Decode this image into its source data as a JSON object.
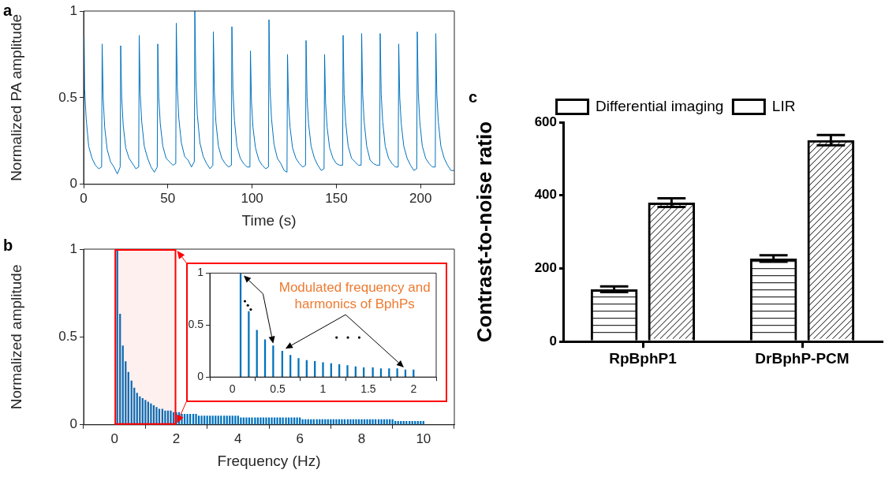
{
  "chart_data": [
    {
      "type": "line",
      "title": "a",
      "xlabel": "Time (s)",
      "ylabel": "Normalized PA amplitude",
      "color": "#0072bd",
      "grid": false,
      "x": [
        0.3,
        0.6,
        1.5,
        3,
        5,
        7,
        9,
        10.7,
        11,
        11.6,
        12.5,
        14,
        16,
        18,
        20,
        21.7,
        22,
        22.6,
        23.5,
        25,
        27,
        29,
        31,
        32.7,
        33,
        33.6,
        34.5,
        36,
        38,
        40,
        42,
        43.7,
        44,
        44.6,
        45.5,
        47,
        49,
        51,
        53,
        54.7,
        55,
        55.6,
        56.5,
        58,
        60,
        62,
        64,
        65.7,
        66,
        66.6,
        67.5,
        69,
        71,
        73,
        75,
        76.7,
        77,
        77.6,
        78.5,
        80,
        82,
        84,
        86,
        87.7,
        88,
        88.6,
        89.5,
        91,
        93,
        95,
        97,
        98.7,
        99,
        99.6,
        100.5,
        102,
        104,
        106,
        108,
        109.7,
        110,
        110.6,
        111.5,
        113,
        115,
        117,
        119,
        120.7,
        121,
        121.6,
        122.5,
        124,
        126,
        128,
        130,
        131.7,
        132,
        132.6,
        133.5,
        135,
        137,
        139,
        141,
        142.7,
        143,
        143.6,
        144.5,
        146,
        148,
        150,
        152,
        153.7,
        154,
        154.6,
        155.5,
        157,
        159,
        161,
        163,
        164.7,
        165,
        165.6,
        166.5,
        168,
        170,
        172,
        174,
        175.7,
        176,
        176.6,
        177.5,
        179,
        181,
        183,
        185,
        186.7,
        187,
        187.6,
        188.5,
        190,
        192,
        194,
        196,
        197.7,
        198,
        198.6,
        199.5,
        201,
        203,
        205,
        207,
        208.7,
        209,
        209.6,
        210.5,
        212,
        214,
        216,
        218,
        220
      ],
      "values": [
        0.85,
        0.55,
        0.38,
        0.22,
        0.15,
        0.11,
        0.09,
        0.1,
        0.81,
        0.5,
        0.33,
        0.2,
        0.13,
        0.1,
        0.06,
        0.1,
        0.8,
        0.5,
        0.34,
        0.21,
        0.15,
        0.12,
        0.09,
        0.1,
        0.86,
        0.52,
        0.36,
        0.22,
        0.15,
        0.1,
        0.07,
        0.1,
        0.81,
        0.5,
        0.35,
        0.22,
        0.15,
        0.13,
        0.11,
        0.12,
        0.93,
        0.56,
        0.38,
        0.24,
        0.16,
        0.14,
        0.1,
        0.13,
        1,
        0.6,
        0.4,
        0.24,
        0.16,
        0.12,
        0.09,
        0.11,
        0.88,
        0.53,
        0.36,
        0.22,
        0.15,
        0.12,
        0.1,
        0.11,
        0.91,
        0.55,
        0.37,
        0.22,
        0.15,
        0.12,
        0.1,
        0.1,
        0.77,
        0.48,
        0.33,
        0.21,
        0.14,
        0.11,
        0.09,
        0.1,
        0.95,
        0.56,
        0.38,
        0.23,
        0.15,
        0.12,
        0.08,
        0.07,
        0.75,
        0.47,
        0.33,
        0.21,
        0.15,
        0.12,
        0.1,
        0.11,
        0.83,
        0.5,
        0.35,
        0.22,
        0.15,
        0.11,
        0.08,
        0.09,
        0.75,
        0.47,
        0.33,
        0.21,
        0.15,
        0.12,
        0.11,
        0.11,
        0.86,
        0.52,
        0.36,
        0.22,
        0.15,
        0.13,
        0.11,
        0.11,
        0.87,
        0.52,
        0.36,
        0.22,
        0.14,
        0.12,
        0.11,
        0.11,
        0.87,
        0.52,
        0.36,
        0.22,
        0.15,
        0.12,
        0.1,
        0.1,
        0.81,
        0.5,
        0.35,
        0.22,
        0.15,
        0.11,
        0.08,
        0.09,
        0.88,
        0.53,
        0.36,
        0.22,
        0.15,
        0.12,
        0.1,
        0.1,
        0.87,
        0.52,
        0.36,
        0.22,
        0.15,
        0.11,
        0.08,
        0.08
      ],
      "xlim": [
        0,
        220
      ],
      "xticks": [
        0,
        50,
        100,
        150,
        200
      ],
      "ylim": [
        0,
        1
      ],
      "yticks": [
        0,
        0.5,
        1
      ]
    },
    {
      "type": "bar",
      "title": "b",
      "xlabel": "Frequency (Hz)",
      "ylabel": "Normalized amplitude",
      "color": "#0072bd",
      "grid": false,
      "x": [
        0.09,
        0.18,
        0.27,
        0.36,
        0.45,
        0.55,
        0.64,
        0.73,
        0.82,
        0.91,
        1.0,
        1.09,
        1.18,
        1.27,
        1.36,
        1.45,
        1.55,
        1.64,
        1.73,
        1.82,
        1.91,
        2.0,
        2.09,
        2.18,
        2.27,
        2.36,
        2.45,
        2.55,
        2.64,
        2.73,
        2.82,
        2.91,
        3.0,
        3.09,
        3.18,
        3.27,
        3.36,
        3.45,
        3.55,
        3.64,
        3.73,
        3.82,
        3.91,
        4.0,
        4.09,
        4.18,
        4.27,
        4.36,
        4.45,
        4.55,
        4.64,
        4.73,
        4.82,
        4.91,
        5.0,
        5.09,
        5.18,
        5.27,
        5.36,
        5.45,
        5.55,
        5.64,
        5.73,
        5.82,
        5.91,
        6.0,
        6.09,
        6.18,
        6.27,
        6.36,
        6.45,
        6.55,
        6.64,
        6.73,
        6.82,
        6.91,
        7.0,
        7.09,
        7.18,
        7.27,
        7.36,
        7.45,
        7.55,
        7.64,
        7.73,
        7.82,
        7.91,
        8.0,
        8.09,
        8.18,
        8.27,
        8.36,
        8.45,
        8.55,
        8.64,
        8.73,
        8.82,
        8.91,
        9.0,
        9.09,
        9.18,
        9.27,
        9.36,
        9.45,
        9.55,
        9.64,
        9.73,
        9.82,
        9.91,
        10.0
      ],
      "values": [
        1,
        0.63,
        0.45,
        0.36,
        0.3,
        0.25,
        0.21,
        0.18,
        0.16,
        0.15,
        0.14,
        0.13,
        0.12,
        0.11,
        0.1,
        0.09,
        0.09,
        0.08,
        0.08,
        0.08,
        0.07,
        0.07,
        0.07,
        0.06,
        0.06,
        0.06,
        0.06,
        0.06,
        0.06,
        0.05,
        0.05,
        0.05,
        0.05,
        0.05,
        0.05,
        0.05,
        0.05,
        0.05,
        0.05,
        0.05,
        0.05,
        0.05,
        0.05,
        0.05,
        0.04,
        0.04,
        0.04,
        0.04,
        0.04,
        0.04,
        0.04,
        0.04,
        0.04,
        0.04,
        0.04,
        0.04,
        0.04,
        0.04,
        0.04,
        0.04,
        0.04,
        0.04,
        0.04,
        0.04,
        0.04,
        0.04,
        0.03,
        0.03,
        0.03,
        0.03,
        0.03,
        0.03,
        0.03,
        0.03,
        0.03,
        0.03,
        0.03,
        0.03,
        0.03,
        0.03,
        0.03,
        0.03,
        0.03,
        0.03,
        0.03,
        0.03,
        0.03,
        0.03,
        0.03,
        0.03,
        0.03,
        0.03,
        0.03,
        0.03,
        0.03,
        0.03,
        0.03,
        0.03,
        0.03,
        0.02,
        0.02,
        0.02,
        0.02,
        0.02,
        0.02,
        0.02,
        0.02,
        0.02,
        0.02,
        0.02
      ],
      "xlim": [
        0,
        10
      ],
      "xticks": [
        0,
        2,
        4,
        6,
        8,
        10
      ],
      "ylim": [
        0,
        1
      ],
      "yticks": [
        0,
        0.5,
        1
      ],
      "bands": [
        {
          "axis": "x",
          "from": 0,
          "to": 2,
          "color": "#ff0000"
        }
      ]
    },
    {
      "type": "bar",
      "color": "#0072bd",
      "grid": false,
      "annotations": [
        "Modulated frequency and harmonics of BphPs"
      ],
      "x": [
        0.09,
        0.18,
        0.27,
        0.36,
        0.45,
        0.55,
        0.64,
        0.73,
        0.82,
        0.91,
        1.0,
        1.09,
        1.18,
        1.27,
        1.36,
        1.45,
        1.55,
        1.64,
        1.73,
        1.82,
        1.91,
        2.0
      ],
      "values": [
        1,
        0.63,
        0.45,
        0.36,
        0.3,
        0.25,
        0.21,
        0.18,
        0.16,
        0.15,
        0.14,
        0.13,
        0.12,
        0.11,
        0.1,
        0.09,
        0.09,
        0.08,
        0.08,
        0.08,
        0.07,
        0.07
      ],
      "xlim": [
        0,
        2
      ],
      "xticks": [
        0,
        0.5,
        1,
        1.5,
        2
      ],
      "ylim": [
        0,
        1
      ],
      "yticks": [
        0,
        0.5,
        1
      ]
    },
    {
      "type": "bar",
      "title": "c",
      "ylabel": "Contrast-to-noise ratio",
      "categories": [
        "RpBphP1",
        "DrBphP-PCM"
      ],
      "legend": "top",
      "grid": false,
      "series": [
        {
          "name": "Differential imaging",
          "color": "#000000",
          "values": [
            143,
            227
          ],
          "errors": [
            8,
            9
          ]
        },
        {
          "name": "LIR",
          "color": "#000000",
          "values": [
            380,
            551
          ],
          "errors": [
            12,
            14
          ]
        }
      ],
      "ylim": [
        0,
        600
      ],
      "yticks": [
        0,
        200,
        400,
        600
      ]
    }
  ]
}
